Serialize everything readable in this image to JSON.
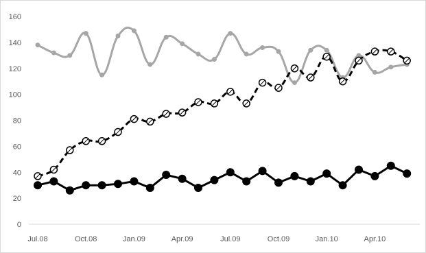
{
  "chart_data": {
    "type": "line",
    "title": "",
    "xlabel": "",
    "ylabel": "",
    "ylim": [
      0,
      160
    ],
    "y_ticks": [
      0,
      20,
      40,
      60,
      80,
      100,
      120,
      140,
      160
    ],
    "x": [
      "Jul.08",
      "Aug.08",
      "Sep.08",
      "Oct.08",
      "Nov.08",
      "Dec.08",
      "Jan.09",
      "Feb.09",
      "Mar.09",
      "Apr.09",
      "May.09",
      "Jun.09",
      "Jul.09",
      "Aug.09",
      "Sep.09",
      "Oct.09",
      "Nov.09",
      "Dec.09",
      "Jan.10",
      "Feb.10",
      "Mar.10",
      "Apr.10",
      "May.10",
      "Jun.10"
    ],
    "x_tick_labels": [
      "Jul.08",
      "Oct.08",
      "Jan.09",
      "Apr.09",
      "Jul.09",
      "Oct.09",
      "Jan.10",
      "Apr.10"
    ],
    "x_tick_indices": [
      0,
      3,
      6,
      9,
      12,
      15,
      18,
      21
    ],
    "grid": false,
    "legend": "none",
    "series": [
      {
        "style": "gray-smooth",
        "color": "#a6a6a6",
        "values": [
          138,
          132,
          130,
          147,
          115,
          145,
          149,
          123,
          144,
          139,
          131,
          127,
          147,
          131,
          136,
          133,
          109,
          134,
          134,
          113,
          130,
          117,
          121,
          123
        ]
      },
      {
        "style": "black-dashed-open-markers",
        "color": "#000000",
        "values": [
          37,
          42,
          57,
          64,
          64,
          71,
          81,
          79,
          85,
          86,
          94,
          93,
          102,
          93,
          109,
          105,
          120,
          113,
          129,
          110,
          126,
          133,
          133,
          126
        ]
      },
      {
        "style": "black-solid-filled-markers",
        "color": "#000000",
        "values": [
          30,
          33,
          26,
          30,
          30,
          31,
          33,
          28,
          38,
          35,
          28,
          34,
          40,
          33,
          41,
          32,
          37,
          33,
          39,
          30,
          42,
          37,
          45,
          39
        ]
      }
    ]
  }
}
